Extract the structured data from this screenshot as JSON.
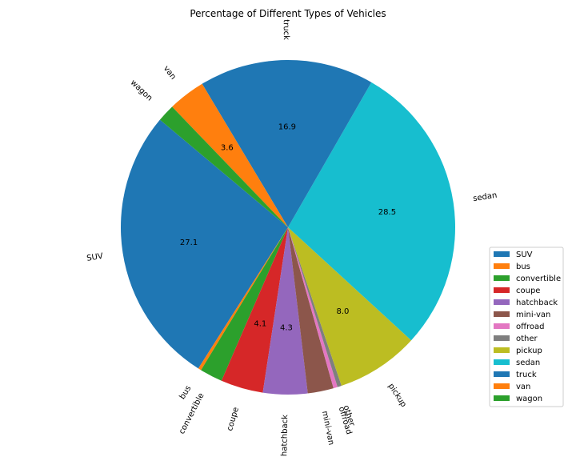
{
  "chart_data": {
    "type": "pie",
    "title": "Percentage of Different Types of Vehicles",
    "slices": [
      {
        "label": "SUV",
        "value": 27.1,
        "color": "#1f77b4",
        "pct_text": "27.1"
      },
      {
        "label": "bus",
        "value": 0.3,
        "color": "#ff7f0e",
        "pct_text": ""
      },
      {
        "label": "convertible",
        "value": 2.2,
        "color": "#2ca02c",
        "pct_text": ""
      },
      {
        "label": "coupe",
        "value": 4.1,
        "color": "#d62728",
        "pct_text": "4.1"
      },
      {
        "label": "hatchback",
        "value": 4.3,
        "color": "#9467bd",
        "pct_text": "4.3"
      },
      {
        "label": "mini-van",
        "value": 2.5,
        "color": "#8c564b",
        "pct_text": ""
      },
      {
        "label": "offroad",
        "value": 0.4,
        "color": "#e377c2",
        "pct_text": ""
      },
      {
        "label": "other",
        "value": 0.4,
        "color": "#7f7f7f",
        "pct_text": ""
      },
      {
        "label": "pickup",
        "value": 8.0,
        "color": "#bcbd22",
        "pct_text": "8.0"
      },
      {
        "label": "sedan",
        "value": 28.5,
        "color": "#17becf",
        "pct_text": "28.5"
      },
      {
        "label": "truck",
        "value": 16.9,
        "color": "#1f77b4",
        "pct_text": "16.9"
      },
      {
        "label": "van",
        "value": 3.6,
        "color": "#ff7f0e",
        "pct_text": "3.6"
      },
      {
        "label": "wagon",
        "value": 1.7,
        "color": "#2ca02c",
        "pct_text": ""
      }
    ],
    "start_angle_deg": 140,
    "direction": "counterclockwise",
    "legend": {
      "placement": "lower-right",
      "entries": [
        "SUV",
        "bus",
        "convertible",
        "coupe",
        "hatchback",
        "mini-van",
        "offroad",
        "other",
        "pickup",
        "sedan",
        "truck",
        "van",
        "wagon"
      ]
    }
  }
}
